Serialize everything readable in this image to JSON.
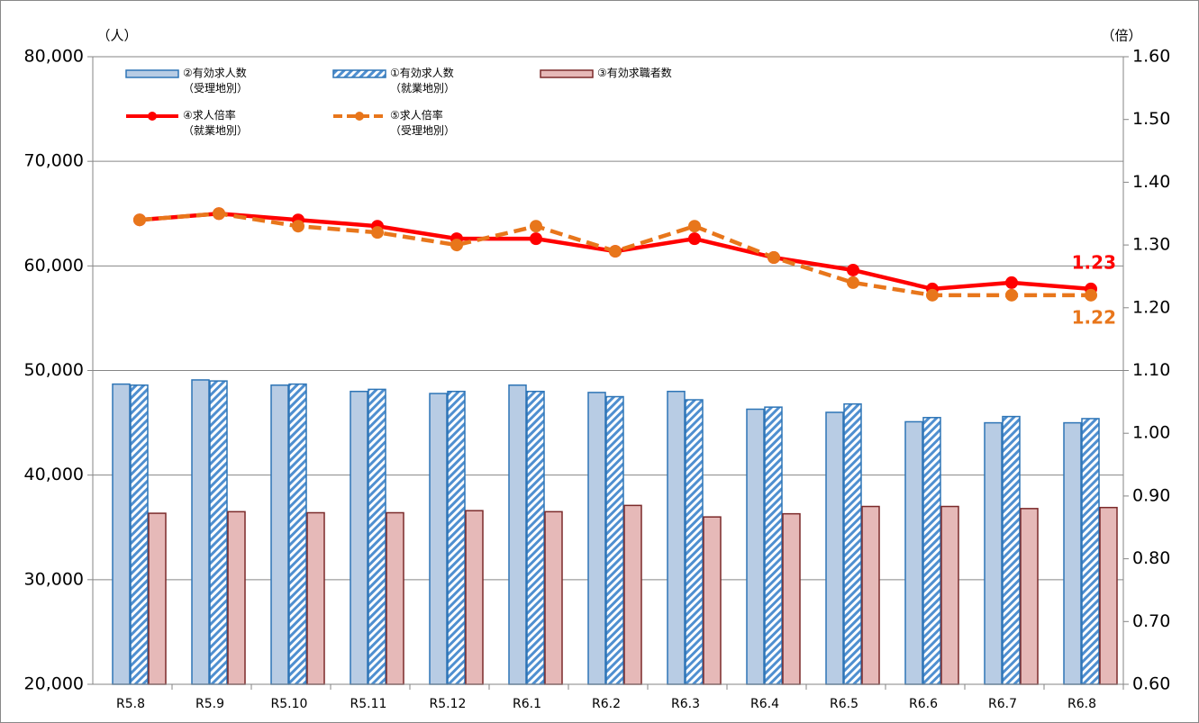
{
  "chart_data": {
    "type": "bar_line",
    "y_label": "（人）",
    "y2_label": "（倍）",
    "categories": [
      "R5.8",
      "R5.9",
      "R5.10",
      "R5.11",
      "R5.12",
      "R6.1",
      "R6.2",
      "R6.3",
      "R6.4",
      "R6.5",
      "R6.6",
      "R6.7",
      "R6.8"
    ],
    "series": [
      {
        "name": "②有効求人数\n（受理地別）",
        "kind": "bar",
        "style": "solid",
        "color": "#b8cce4",
        "edge": "#2e75b6",
        "values": [
          48700,
          49100,
          48600,
          48000,
          47800,
          48600,
          47900,
          48000,
          46300,
          46000,
          45100,
          45000,
          45000
        ]
      },
      {
        "name": "①有効求人数\n（就業地別）",
        "kind": "bar",
        "style": "hatched",
        "color": "#4f8fd0",
        "edge": "#2e75b6",
        "values": [
          48600,
          49000,
          48700,
          48200,
          48000,
          48000,
          47500,
          47200,
          46500,
          46800,
          45500,
          45600,
          45400
        ]
      },
      {
        "name": "③有効求職者数",
        "kind": "bar",
        "style": "solid",
        "color": "#e6b9b8",
        "edge": "#7b2a2a",
        "values": [
          36350,
          36500,
          36400,
          36400,
          36600,
          36500,
          37100,
          36000,
          36300,
          37000,
          37000,
          36800,
          36900
        ]
      },
      {
        "name": "④求人倍率\n（就業地別）",
        "kind": "line",
        "style": "solid",
        "color": "#ff0000",
        "axis": "y2",
        "values": [
          1.34,
          1.35,
          1.34,
          1.33,
          1.31,
          1.31,
          1.29,
          1.31,
          1.28,
          1.26,
          1.23,
          1.24,
          1.23
        ]
      },
      {
        "name": "⑤求人倍率\n（受理地別）",
        "kind": "line",
        "style": "dashed",
        "color": "#e8761b",
        "axis": "y2",
        "values": [
          1.34,
          1.35,
          1.33,
          1.32,
          1.3,
          1.33,
          1.29,
          1.33,
          1.28,
          1.24,
          1.22,
          1.22,
          1.22
        ]
      }
    ],
    "annotations": [
      "1.23",
      "1.22"
    ],
    "ylim": [
      20000,
      80000
    ],
    "yticks": [
      {
        "value": 20000,
        "label": "20,000"
      },
      {
        "value": 30000,
        "label": "30,000"
      },
      {
        "value": 40000,
        "label": "40,000"
      },
      {
        "value": 50000,
        "label": "50,000"
      },
      {
        "value": 60000,
        "label": "60,000"
      },
      {
        "value": 70000,
        "label": "70,000"
      },
      {
        "value": 80000,
        "label": "80,000"
      }
    ],
    "y2lim": [
      0.6,
      1.6
    ],
    "y2ticks": [
      {
        "value": 0.6,
        "label": "0.60"
      },
      {
        "value": 0.7,
        "label": "0.70"
      },
      {
        "value": 0.8,
        "label": "0.80"
      },
      {
        "value": 0.9,
        "label": "0.90"
      },
      {
        "value": 1.0,
        "label": "1.00"
      },
      {
        "value": 1.1,
        "label": "1.10"
      },
      {
        "value": 1.2,
        "label": "1.20"
      },
      {
        "value": 1.3,
        "label": "1.30"
      },
      {
        "value": 1.4,
        "label": "1.40"
      },
      {
        "value": 1.5,
        "label": "1.50"
      },
      {
        "value": 1.6,
        "label": "1.60"
      }
    ],
    "grid": true
  }
}
